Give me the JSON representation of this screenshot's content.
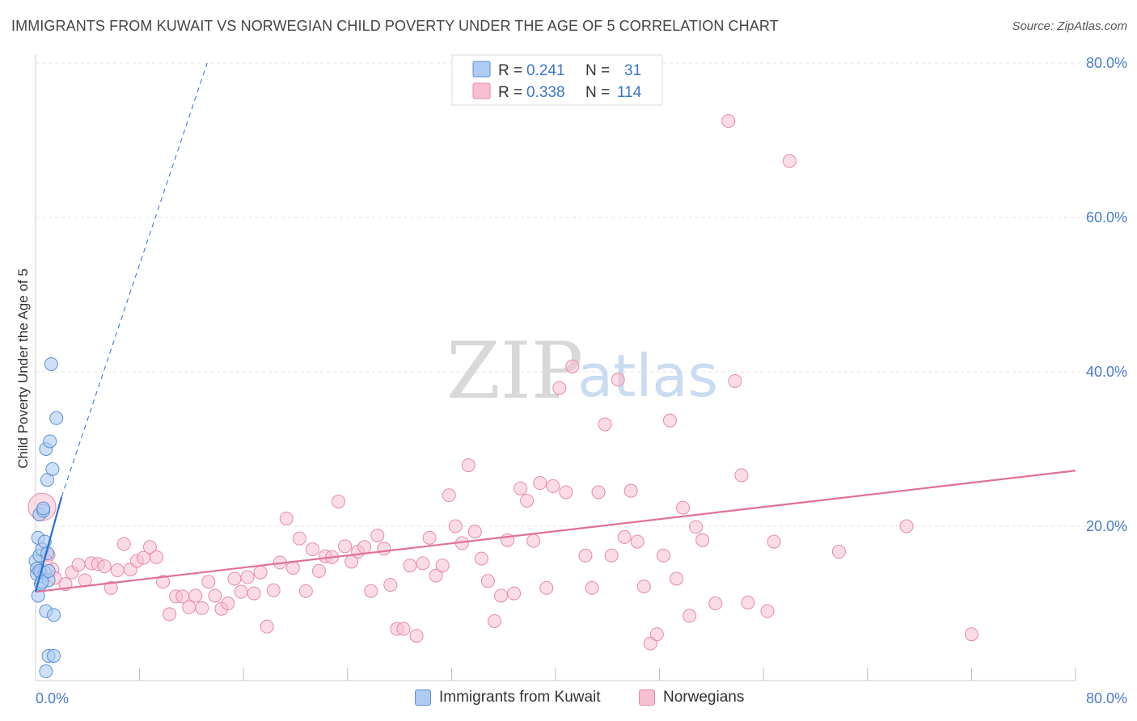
{
  "title": "IMMIGRANTS FROM KUWAIT VS NORWEGIAN CHILD POVERTY UNDER THE AGE OF 5 CORRELATION CHART",
  "source": "Source: ZipAtlas.com",
  "watermark": {
    "zip": "ZIP",
    "atlas": "atlas"
  },
  "colors": {
    "kuwait_fill": "#aecbf2",
    "kuwait_stroke": "#5b8fd6",
    "kuwait_line": "#2b6fd0",
    "norwegian_fill": "#f7bfd1",
    "norwegian_stroke": "#e58aa9",
    "norwegian_line": "#e07099",
    "tick": "#4a7ccc"
  },
  "legend": {
    "rows": [
      {
        "r_label": "R =",
        "r_value": "0.241",
        "n_label": "N =",
        "n_value": "31"
      },
      {
        "r_label": "R =",
        "r_value": "0.338",
        "n_label": "N =",
        "n_value": "114"
      }
    ]
  },
  "chart_data": {
    "type": "scatter",
    "title": "IMMIGRANTS FROM KUWAIT VS NORWEGIAN CHILD POVERTY UNDER THE AGE OF 5 CORRELATION CHART",
    "xlabel": "",
    "ylabel": "Child Poverty Under the Age of 5",
    "xlim": [
      0,
      80
    ],
    "ylim": [
      0,
      80
    ],
    "x_tick_labels": [
      "0.0%",
      "80.0%"
    ],
    "y_ticks": [
      20,
      40,
      60,
      80
    ],
    "y_tick_labels": [
      "20.0%",
      "40.0%",
      "60.0%",
      "80.0%"
    ],
    "grid": true,
    "legend_position": "top-center",
    "series": [
      {
        "name": "Immigrants from Kuwait",
        "trend": {
          "x": [
            0.0,
            2.0
          ],
          "y": [
            11.5,
            23.8
          ],
          "extended_to": [
            13.2,
            80.0
          ]
        },
        "points": [
          [
            0.0,
            15.5
          ],
          [
            0.1,
            14.5
          ],
          [
            0.1,
            13.8
          ],
          [
            0.2,
            11.0
          ],
          [
            0.2,
            18.5
          ],
          [
            0.3,
            16.2
          ],
          [
            0.3,
            21.5
          ],
          [
            0.4,
            14.0
          ],
          [
            0.4,
            12.5
          ],
          [
            0.5,
            17.0
          ],
          [
            0.5,
            13.5
          ],
          [
            0.6,
            22.0
          ],
          [
            0.6,
            22.3
          ],
          [
            0.7,
            14.0
          ],
          [
            0.7,
            18.0
          ],
          [
            0.8,
            30.0
          ],
          [
            0.8,
            9.0
          ],
          [
            0.9,
            26.0
          ],
          [
            0.9,
            16.5
          ],
          [
            1.0,
            3.2
          ],
          [
            1.0,
            13.0
          ],
          [
            1.1,
            31.0
          ],
          [
            1.2,
            41.0
          ],
          [
            1.3,
            27.4
          ],
          [
            1.4,
            8.5
          ],
          [
            1.4,
            3.2
          ],
          [
            1.6,
            34.0
          ],
          [
            0.8,
            1.2
          ],
          [
            0.3,
            14.2
          ],
          [
            0.5,
            12.8
          ],
          [
            1.0,
            14.2
          ]
        ]
      },
      {
        "name": "Norwegians",
        "trend": {
          "x": [
            0.0,
            80.0
          ],
          "y": [
            11.5,
            27.2
          ]
        },
        "points": [
          [
            0.5,
            22.5
          ],
          [
            1.0,
            16.3
          ],
          [
            1.3,
            14.4
          ],
          [
            1.5,
            13.3
          ],
          [
            2.3,
            12.5
          ],
          [
            2.8,
            14.0
          ],
          [
            3.3,
            15.0
          ],
          [
            3.8,
            13.0
          ],
          [
            4.3,
            15.2
          ],
          [
            4.8,
            15.1
          ],
          [
            5.3,
            14.8
          ],
          [
            5.8,
            12.0
          ],
          [
            6.3,
            14.3
          ],
          [
            6.8,
            17.7
          ],
          [
            7.3,
            14.4
          ],
          [
            7.8,
            15.5
          ],
          [
            8.3,
            15.9
          ],
          [
            8.8,
            17.3
          ],
          [
            9.3,
            16.0
          ],
          [
            9.8,
            12.8
          ],
          [
            10.3,
            8.6
          ],
          [
            10.8,
            10.9
          ],
          [
            11.3,
            10.9
          ],
          [
            11.8,
            9.5
          ],
          [
            12.3,
            11.0
          ],
          [
            12.8,
            9.4
          ],
          [
            13.3,
            12.8
          ],
          [
            13.8,
            11.0
          ],
          [
            14.3,
            9.3
          ],
          [
            14.8,
            10.0
          ],
          [
            15.3,
            13.2
          ],
          [
            15.8,
            11.5
          ],
          [
            16.3,
            13.4
          ],
          [
            16.8,
            11.3
          ],
          [
            17.3,
            14.0
          ],
          [
            17.8,
            7.0
          ],
          [
            18.3,
            11.7
          ],
          [
            18.8,
            15.3
          ],
          [
            19.3,
            21.0
          ],
          [
            19.8,
            14.6
          ],
          [
            20.3,
            18.4
          ],
          [
            20.8,
            11.6
          ],
          [
            21.3,
            17.0
          ],
          [
            21.8,
            14.2
          ],
          [
            22.3,
            16.1
          ],
          [
            22.8,
            16.0
          ],
          [
            23.3,
            23.2
          ],
          [
            23.8,
            17.4
          ],
          [
            24.3,
            15.4
          ],
          [
            24.8,
            16.7
          ],
          [
            25.3,
            17.3
          ],
          [
            25.8,
            11.6
          ],
          [
            26.3,
            18.8
          ],
          [
            26.8,
            17.1
          ],
          [
            27.3,
            12.4
          ],
          [
            27.8,
            6.7
          ],
          [
            28.3,
            6.7
          ],
          [
            28.8,
            14.9
          ],
          [
            29.3,
            5.8
          ],
          [
            29.8,
            15.2
          ],
          [
            30.3,
            18.5
          ],
          [
            30.8,
            13.6
          ],
          [
            31.3,
            14.9
          ],
          [
            31.8,
            24.0
          ],
          [
            32.3,
            20.0
          ],
          [
            32.8,
            17.8
          ],
          [
            33.3,
            27.9
          ],
          [
            33.8,
            19.3
          ],
          [
            34.3,
            15.8
          ],
          [
            34.8,
            12.9
          ],
          [
            35.3,
            7.7
          ],
          [
            35.8,
            11.0
          ],
          [
            36.3,
            18.2
          ],
          [
            36.8,
            11.3
          ],
          [
            37.3,
            24.9
          ],
          [
            37.8,
            23.3
          ],
          [
            38.3,
            18.1
          ],
          [
            38.8,
            25.6
          ],
          [
            39.3,
            12.0
          ],
          [
            39.8,
            25.2
          ],
          [
            40.3,
            37.9
          ],
          [
            40.8,
            24.4
          ],
          [
            41.3,
            40.7
          ],
          [
            42.3,
            16.2
          ],
          [
            42.8,
            12.0
          ],
          [
            43.3,
            24.4
          ],
          [
            43.8,
            33.2
          ],
          [
            44.3,
            16.2
          ],
          [
            44.8,
            39.0
          ],
          [
            45.3,
            18.6
          ],
          [
            45.8,
            24.6
          ],
          [
            46.3,
            18.0
          ],
          [
            46.8,
            12.2
          ],
          [
            47.3,
            4.8
          ],
          [
            47.8,
            6.0
          ],
          [
            48.3,
            16.2
          ],
          [
            48.8,
            33.7
          ],
          [
            49.3,
            13.2
          ],
          [
            49.8,
            22.4
          ],
          [
            50.3,
            8.4
          ],
          [
            50.8,
            19.9
          ],
          [
            51.3,
            18.2
          ],
          [
            52.3,
            10.0
          ],
          [
            53.3,
            72.5
          ],
          [
            53.8,
            38.8
          ],
          [
            54.3,
            26.6
          ],
          [
            54.8,
            10.1
          ],
          [
            56.3,
            9.0
          ],
          [
            56.8,
            18.0
          ],
          [
            58.0,
            67.3
          ],
          [
            61.8,
            16.7
          ],
          [
            67.0,
            20.0
          ],
          [
            72.0,
            6.0
          ],
          [
            0.8,
            15.5
          ]
        ]
      }
    ]
  },
  "bottom_legend": [
    {
      "label": "Immigrants from Kuwait"
    },
    {
      "label": "Norwegians"
    }
  ]
}
